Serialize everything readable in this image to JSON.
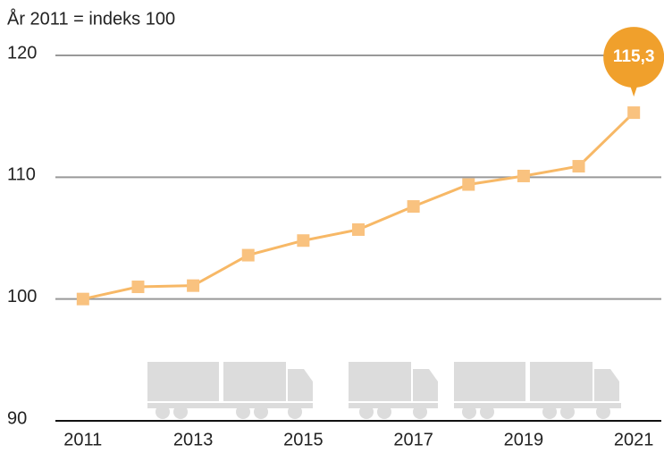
{
  "chart_data": {
    "type": "line",
    "y_label": "År 2011 = indeks 100",
    "x": [
      2011,
      2012,
      2013,
      2014,
      2015,
      2016,
      2017,
      2018,
      2019,
      2020,
      2021
    ],
    "values": [
      100,
      101.0,
      101.1,
      103.6,
      104.8,
      105.7,
      107.6,
      109.4,
      110.1,
      110.9,
      115.3
    ],
    "value_labels": [
      null,
      null,
      null,
      null,
      null,
      null,
      null,
      null,
      null,
      null,
      "115,3"
    ],
    "color": "#f7b866",
    "marker_color": "#f9c27f",
    "label_color": "#f0a02c",
    "xlim": [
      2010.5,
      2021.5
    ],
    "xticks": [
      2011,
      2013,
      2015,
      2017,
      2019,
      2021
    ],
    "ylim": [
      90,
      120
    ],
    "yticks": [
      90,
      100,
      110,
      120
    ],
    "grid": true
  }
}
